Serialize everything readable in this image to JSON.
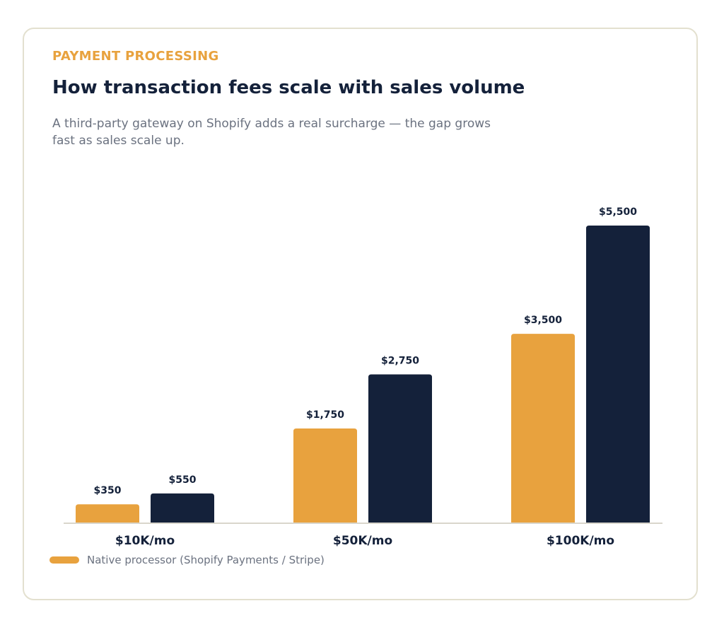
{
  "header": {
    "eyebrow": "PAYMENT PROCESSING",
    "title": "How transaction fees scale with sales volume",
    "subtitle": "A third-party gateway on Shopify adds a real surcharge — the gap grows fast as sales scale up."
  },
  "colors": {
    "native": "#e8a23e",
    "third_party": "#14213a",
    "axis": "#d9d6cc",
    "value_label": "#14213a"
  },
  "chart_data": {
    "type": "bar",
    "categories": [
      "$10K/mo",
      "$50K/mo",
      "$100K/mo"
    ],
    "series": [
      {
        "name": "Native processor (Shopify Payments / Stripe)",
        "values": [
          350,
          1750,
          3500
        ],
        "labels": [
          "$350",
          "$1,750",
          "$3,500"
        ],
        "color": "#e8a23e"
      },
      {
        "values": [
          550,
          2750,
          5500
        ],
        "labels": [
          "$550",
          "$2,750",
          "$5,500"
        ],
        "color": "#14213a"
      }
    ],
    "ylim": [
      0,
      5500
    ],
    "grid": false,
    "legend_position": "bottom-left"
  },
  "legend": {
    "items": [
      {
        "label": "Native processor (Shopify Payments / Stripe)",
        "color": "#e8a23e"
      }
    ]
  }
}
